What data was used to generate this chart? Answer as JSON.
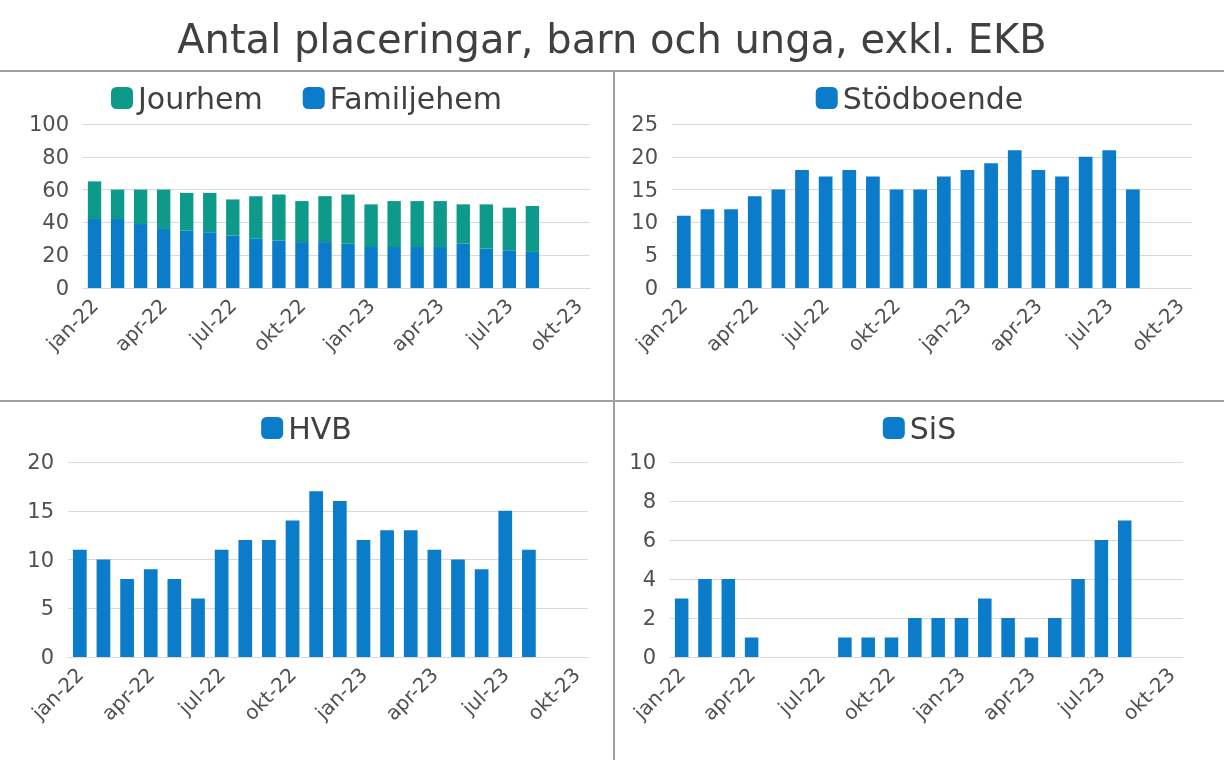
{
  "chart_data": [
    {
      "type": "bar",
      "title": "Antal placeringar, barn och unga, exkl. EKB",
      "categories": [
        "jan-22",
        null,
        null,
        "apr-22",
        null,
        null,
        "jul-22",
        null,
        null,
        "okt-22",
        null,
        null,
        "jan-23",
        null,
        null,
        "apr-23",
        null,
        null,
        "jul-23",
        null,
        null,
        "okt-23"
      ],
      "stacked": true,
      "series": [
        {
          "name": "Familjehem",
          "color": "#0a7cca",
          "values": [
            42,
            42,
            39,
            36,
            35,
            34,
            32,
            30,
            29,
            28,
            28,
            27,
            25,
            25,
            25,
            25,
            27,
            24,
            23,
            22,
            null,
            null
          ]
        },
        {
          "name": "Jourhem",
          "color": "#0e9a8a",
          "values": [
            23,
            18,
            21,
            24,
            23,
            24,
            22,
            26,
            28,
            25,
            28,
            30,
            26,
            28,
            28,
            28,
            24,
            27,
            26,
            28,
            null,
            null
          ]
        }
      ],
      "ylim": [
        0,
        100
      ],
      "yticks": [
        0,
        20,
        40,
        60,
        80,
        100
      ],
      "grid": "y",
      "legend": "top"
    },
    {
      "type": "bar",
      "categories": [
        "jan-22",
        null,
        null,
        "apr-22",
        null,
        null,
        "jul-22",
        null,
        null,
        "okt-22",
        null,
        null,
        "jan-23",
        null,
        null,
        "apr-23",
        null,
        null,
        "jul-23",
        null,
        null,
        "okt-23"
      ],
      "series": [
        {
          "name": "Stödboende",
          "color": "#0a7cca",
          "values": [
            11,
            12,
            12,
            14,
            15,
            18,
            17,
            18,
            17,
            15,
            15,
            17,
            18,
            19,
            21,
            18,
            17,
            20,
            21,
            15,
            null,
            null
          ]
        }
      ],
      "ylim": [
        0,
        25
      ],
      "yticks": [
        0,
        5,
        10,
        15,
        20,
        25
      ],
      "grid": "y",
      "legend": "top"
    },
    {
      "type": "bar",
      "categories": [
        "jan-22",
        null,
        null,
        "apr-22",
        null,
        null,
        "jul-22",
        null,
        null,
        "okt-22",
        null,
        null,
        "jan-23",
        null,
        null,
        "apr-23",
        null,
        null,
        "jul-23",
        null,
        null,
        "okt-23"
      ],
      "series": [
        {
          "name": "HVB",
          "color": "#0a7cca",
          "values": [
            11,
            10,
            8,
            9,
            8,
            6,
            11,
            12,
            12,
            14,
            17,
            16,
            12,
            13,
            13,
            11,
            10,
            9,
            15,
            11,
            null,
            null
          ]
        }
      ],
      "ylim": [
        0,
        20
      ],
      "yticks": [
        0,
        5,
        10,
        15,
        20
      ],
      "grid": "y",
      "legend": "top"
    },
    {
      "type": "bar",
      "categories": [
        "jan-22",
        null,
        null,
        "apr-22",
        null,
        null,
        "jul-22",
        null,
        null,
        "okt-22",
        null,
        null,
        "jan-23",
        null,
        null,
        "apr-23",
        null,
        null,
        "jul-23",
        null,
        null,
        "okt-23"
      ],
      "series": [
        {
          "name": "SiS",
          "color": "#0a7cca",
          "values": [
            3,
            4,
            4,
            1,
            0,
            0,
            0,
            1,
            1,
            1,
            2,
            2,
            2,
            3,
            2,
            1,
            2,
            4,
            6,
            7,
            null,
            null
          ]
        }
      ],
      "ylim": [
        0,
        10
      ],
      "yticks": [
        0,
        2,
        4,
        6,
        8,
        10
      ],
      "grid": "y",
      "legend": "top"
    }
  ]
}
